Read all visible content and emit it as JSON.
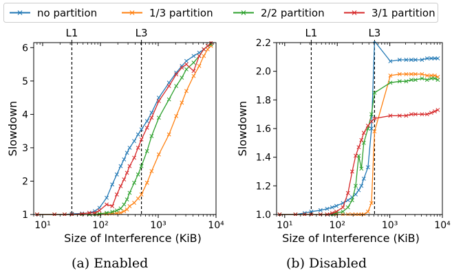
{
  "legend": {
    "placement": "top",
    "entries": [
      {
        "name": "no partition",
        "color": "#1f77b4"
      },
      {
        "name": "1/3 partition",
        "color": "#ff7f0e"
      },
      {
        "name": "2/2 partition",
        "color": "#2ca02c"
      },
      {
        "name": "3/1 partition",
        "color": "#d62728"
      }
    ]
  },
  "captions": [
    "(a) Enabled",
    "(b) Disabled"
  ],
  "chart_data": [
    {
      "type": "line",
      "caption": "(a) Enabled",
      "xlabel": "Size of Interference (KiB)",
      "ylabel": "Slowdown",
      "xscale": "log",
      "xlim": [
        7,
        10000
      ],
      "ylim": [
        1.0,
        6.15
      ],
      "xticks": [
        10,
        100,
        1000,
        10000
      ],
      "xtick_labels": [
        "10¹",
        "10²",
        "10³",
        "10⁴"
      ],
      "yticks": [
        1,
        2,
        3,
        4,
        5,
        6
      ],
      "ytick_labels": [
        "1",
        "2",
        "3",
        "4",
        "5",
        "6"
      ],
      "vlines": [
        {
          "label": "L1",
          "x": 32
        },
        {
          "label": "L3",
          "x": 512
        }
      ],
      "grid": false,
      "series": [
        {
          "name": "no partition",
          "color": "#1f77b4",
          "x": [
            8,
            16,
            24,
            32,
            48,
            64,
            80,
            96,
            128,
            160,
            192,
            224,
            256,
            288,
            320,
            384,
            448,
            512,
            640,
            768,
            1024,
            1536,
            2048,
            2560,
            3072,
            4096,
            5120,
            6144,
            7168,
            8192
          ],
          "y": [
            1.0,
            1.0,
            1.0,
            1.02,
            1.03,
            1.05,
            1.1,
            1.2,
            1.5,
            1.9,
            2.2,
            2.45,
            2.65,
            2.85,
            3.0,
            3.2,
            3.4,
            3.55,
            3.8,
            4.05,
            4.5,
            4.95,
            5.25,
            5.45,
            5.6,
            5.75,
            5.85,
            5.95,
            6.05,
            6.1
          ]
        },
        {
          "name": "1/3 partition",
          "color": "#ff7f0e",
          "x": [
            8,
            16,
            24,
            32,
            48,
            64,
            80,
            96,
            128,
            160,
            192,
            224,
            256,
            288,
            320,
            384,
            448,
            512,
            640,
            768,
            1024,
            1536,
            2048,
            2560,
            3072,
            4096,
            5120,
            6144,
            7168,
            8192
          ],
          "y": [
            1.0,
            1.0,
            1.0,
            1.0,
            1.0,
            1.0,
            1.0,
            1.0,
            1.02,
            1.03,
            1.04,
            1.05,
            1.1,
            1.15,
            1.25,
            1.35,
            1.48,
            1.6,
            1.95,
            2.3,
            2.8,
            3.4,
            3.95,
            4.35,
            4.7,
            5.15,
            5.45,
            5.75,
            5.95,
            6.05
          ]
        },
        {
          "name": "2/2 partition",
          "color": "#2ca02c",
          "x": [
            8,
            16,
            24,
            32,
            48,
            64,
            80,
            96,
            128,
            160,
            192,
            224,
            256,
            288,
            320,
            384,
            448,
            512,
            640,
            768,
            1024,
            1536,
            2048,
            2560,
            3072,
            4096,
            5120,
            6144,
            7168,
            8192
          ],
          "y": [
            1.0,
            1.0,
            1.0,
            1.0,
            1.0,
            1.0,
            1.0,
            1.02,
            1.05,
            1.08,
            1.12,
            1.18,
            1.3,
            1.45,
            1.65,
            1.95,
            2.2,
            2.45,
            2.9,
            3.35,
            3.9,
            4.45,
            4.85,
            5.1,
            5.35,
            5.55,
            5.75,
            5.95,
            6.05,
            6.1
          ]
        },
        {
          "name": "3/1 partition",
          "color": "#d62728",
          "x": [
            8,
            16,
            24,
            32,
            48,
            64,
            80,
            96,
            128,
            160,
            192,
            224,
            256,
            288,
            320,
            384,
            448,
            512,
            640,
            768,
            1024,
            1536,
            2048,
            2560,
            3072,
            4096,
            5120,
            6144,
            7168,
            8192
          ],
          "y": [
            1.0,
            1.0,
            1.0,
            1.0,
            1.02,
            1.05,
            1.05,
            1.12,
            1.3,
            1.25,
            1.6,
            1.85,
            2.05,
            2.25,
            2.45,
            2.7,
            3.0,
            3.25,
            3.6,
            3.9,
            4.4,
            4.85,
            5.2,
            5.4,
            5.5,
            5.3,
            5.75,
            5.95,
            6.05,
            6.15
          ]
        }
      ]
    },
    {
      "type": "line",
      "caption": "(b) Disabled",
      "xlabel": "Size of Interference (KiB)",
      "ylabel": "Slowdown",
      "xscale": "log",
      "xlim": [
        7,
        10000
      ],
      "ylim": [
        1.0,
        2.2
      ],
      "xticks": [
        10,
        100,
        1000,
        10000
      ],
      "xtick_labels": [
        "10¹",
        "10²",
        "10³",
        "10⁴"
      ],
      "yticks": [
        1.0,
        1.2,
        1.4,
        1.6,
        1.8,
        2.0,
        2.2
      ],
      "ytick_labels": [
        "1.0",
        "1.2",
        "1.4",
        "1.6",
        "1.8",
        "2.0",
        "2.2"
      ],
      "vlines": [
        {
          "label": "L1",
          "x": 32
        },
        {
          "label": "L3",
          "x": 512
        }
      ],
      "grid": false,
      "series": [
        {
          "name": "no partition",
          "color": "#1f77b4",
          "x": [
            8,
            16,
            24,
            32,
            48,
            64,
            80,
            96,
            128,
            160,
            192,
            224,
            256,
            288,
            320,
            384,
            448,
            512,
            1024,
            1536,
            2048,
            2560,
            3072,
            4096,
            5120,
            6144,
            7168,
            8192
          ],
          "y": [
            1.0,
            1.0,
            1.01,
            1.02,
            1.03,
            1.04,
            1.05,
            1.06,
            1.08,
            1.1,
            1.12,
            1.14,
            1.17,
            1.2,
            1.25,
            1.33,
            1.6,
            2.21,
            2.07,
            2.08,
            2.08,
            2.08,
            2.08,
            2.08,
            2.09,
            2.09,
            2.09,
            2.09
          ]
        },
        {
          "name": "1/3 partition",
          "color": "#ff7f0e",
          "x": [
            8,
            16,
            24,
            32,
            48,
            64,
            80,
            96,
            128,
            160,
            192,
            224,
            256,
            288,
            320,
            384,
            448,
            512,
            1024,
            1536,
            2048,
            2560,
            3072,
            4096,
            5120,
            6144,
            7168,
            8192
          ],
          "y": [
            1.0,
            1.0,
            1.0,
            1.0,
            1.0,
            1.0,
            1.0,
            1.0,
            1.0,
            1.0,
            1.0,
            1.0,
            1.0,
            1.0,
            1.0,
            1.02,
            1.08,
            1.58,
            1.97,
            1.98,
            1.98,
            1.98,
            1.98,
            1.98,
            1.97,
            1.97,
            1.97,
            1.96
          ]
        },
        {
          "name": "2/2 partition",
          "color": "#2ca02c",
          "x": [
            8,
            16,
            24,
            32,
            48,
            64,
            80,
            96,
            128,
            160,
            192,
            224,
            256,
            288,
            320,
            384,
            448,
            512,
            1024,
            1536,
            2048,
            2560,
            3072,
            4096,
            5120,
            6144,
            7168,
            8192
          ],
          "y": [
            1.0,
            1.0,
            1.0,
            1.0,
            1.0,
            1.0,
            1.0,
            1.01,
            1.02,
            1.05,
            1.1,
            1.2,
            1.41,
            1.32,
            1.5,
            1.6,
            1.7,
            1.85,
            1.92,
            1.93,
            1.93,
            1.94,
            1.94,
            1.95,
            1.94,
            1.95,
            1.95,
            1.94
          ]
        },
        {
          "name": "3/1 partition",
          "color": "#d62728",
          "x": [
            8,
            16,
            24,
            32,
            48,
            64,
            80,
            96,
            128,
            160,
            192,
            224,
            256,
            288,
            320,
            384,
            448,
            512,
            1024,
            1536,
            2048,
            2560,
            3072,
            4096,
            5120,
            6144,
            7168,
            8192
          ],
          "y": [
            1.0,
            1.0,
            1.0,
            1.0,
            1.0,
            1.0,
            1.01,
            1.02,
            1.05,
            1.15,
            1.3,
            1.41,
            1.47,
            1.52,
            1.57,
            1.62,
            1.65,
            1.67,
            1.69,
            1.69,
            1.69,
            1.7,
            1.7,
            1.7,
            1.7,
            1.71,
            1.72,
            1.73
          ]
        }
      ]
    }
  ]
}
